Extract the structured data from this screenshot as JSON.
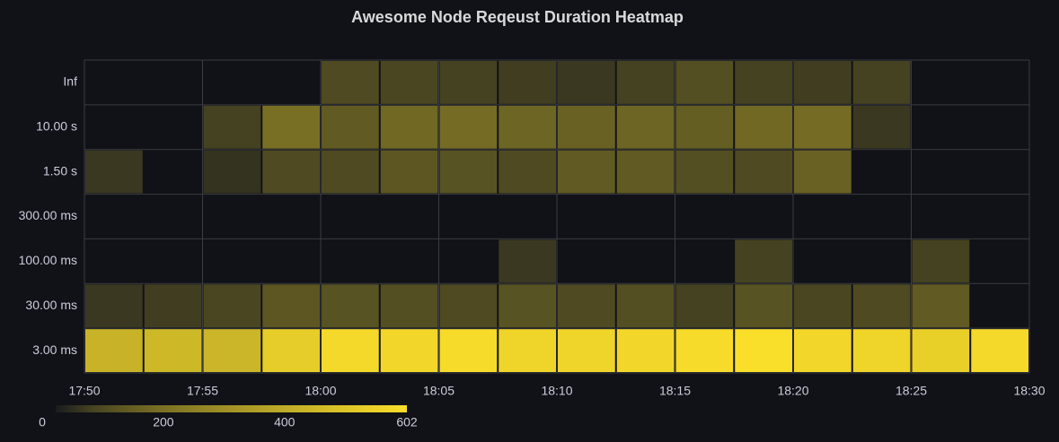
{
  "chart_data": {
    "type": "heatmap",
    "title": "Awesome Node Reqeust Duration Heatmap",
    "y_categories": [
      "3.00 ms",
      "30.00 ms",
      "100.00 ms",
      "300.00 ms",
      "1.50 s",
      "10.00 s",
      "Inf"
    ],
    "xbins": [
      0,
      2.5,
      5,
      7.5,
      10,
      12.5,
      15,
      17.5,
      20,
      22.5,
      25,
      27.5,
      30,
      32.5,
      35,
      37.5,
      40
    ],
    "xlim": [
      0,
      40
    ],
    "xticks": [
      {
        "value": 0,
        "label": "17:50"
      },
      {
        "value": 5,
        "label": "17:55"
      },
      {
        "value": 10,
        "label": "18:00"
      },
      {
        "value": 15,
        "label": "18:05"
      },
      {
        "value": 20,
        "label": "18:10"
      },
      {
        "value": 25,
        "label": "18:15"
      },
      {
        "value": 30,
        "label": "18:20"
      },
      {
        "value": 35,
        "label": "18:25"
      },
      {
        "value": 40,
        "label": "18:30"
      }
    ],
    "values": [
      [
        420,
        440,
        430,
        530,
        580,
        570,
        590,
        560,
        560,
        570,
        590,
        600,
        570,
        560,
        540,
        580
      ],
      [
        40,
        50,
        70,
        110,
        100,
        90,
        80,
        100,
        80,
        90,
        60,
        100,
        70,
        80,
        120,
        null
      ],
      [
        null,
        null,
        null,
        null,
        null,
        null,
        null,
        40,
        null,
        null,
        null,
        60,
        null,
        null,
        60,
        null
      ],
      [
        null,
        null,
        null,
        null,
        null,
        null,
        null,
        null,
        null,
        null,
        null,
        null,
        null,
        null,
        null,
        null
      ],
      [
        40,
        null,
        30,
        80,
        80,
        110,
        100,
        80,
        120,
        120,
        90,
        80,
        140,
        null,
        null,
        null
      ],
      [
        null,
        null,
        60,
        180,
        120,
        160,
        170,
        150,
        140,
        150,
        130,
        160,
        170,
        40,
        null,
        null
      ],
      [
        null,
        null,
        null,
        null,
        80,
        70,
        60,
        50,
        40,
        60,
        90,
        60,
        50,
        60,
        null,
        null
      ]
    ],
    "color_low": "#181b1f",
    "color_high": "#fade2a",
    "colorbar": {
      "lim": [
        0,
        602
      ],
      "ticks": [
        0,
        200,
        400,
        602
      ]
    },
    "grid": true
  }
}
